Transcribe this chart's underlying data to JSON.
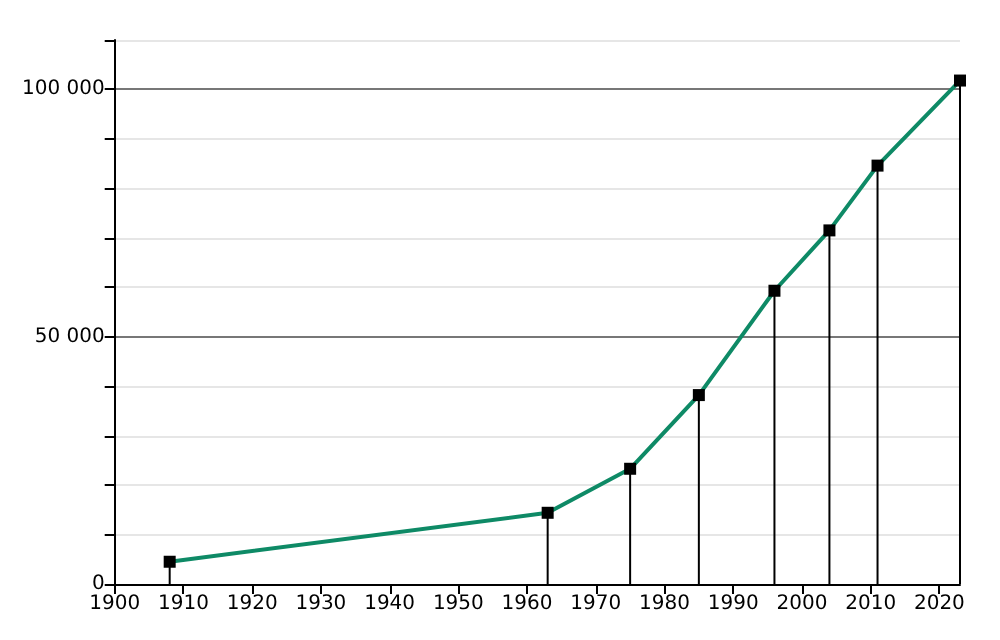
{
  "chart_data": {
    "type": "line",
    "x": [
      1908,
      1963,
      1975,
      1985,
      1996,
      2004,
      2011,
      2023
    ],
    "series": [
      {
        "type": "bar",
        "color": "#000000",
        "values": [
          4500,
          14400,
          23300,
          38200,
          59300,
          71500,
          84600,
          101800
        ]
      },
      {
        "color": "#0e8a66",
        "values": [
          4500,
          14400,
          23300,
          38200,
          59300,
          71500,
          84600,
          101800
        ]
      }
    ],
    "xlim": [
      1900,
      2023
    ],
    "xticks": [
      1900,
      1910,
      1920,
      1930,
      1940,
      1950,
      1960,
      1970,
      1980,
      1990,
      2000,
      2010,
      2020
    ],
    "ylim": [
      0,
      110000
    ],
    "yticks": [
      0,
      {
        "value": 10000,
        "label": null
      },
      {
        "value": 20000,
        "label": null
      },
      {
        "value": 30000,
        "label": null
      },
      {
        "value": 40000,
        "label": null
      },
      {
        "value": 50000,
        "label": "50 000"
      },
      {
        "value": 60000,
        "label": null
      },
      {
        "value": 70000,
        "label": null
      },
      {
        "value": 80000,
        "label": null
      },
      {
        "value": 90000,
        "label": null
      },
      {
        "value": 100000,
        "label": "100 000"
      },
      {
        "value": 110000,
        "label": null
      }
    ],
    "grid": "y",
    "marker": "square",
    "line_style": "solid"
  }
}
